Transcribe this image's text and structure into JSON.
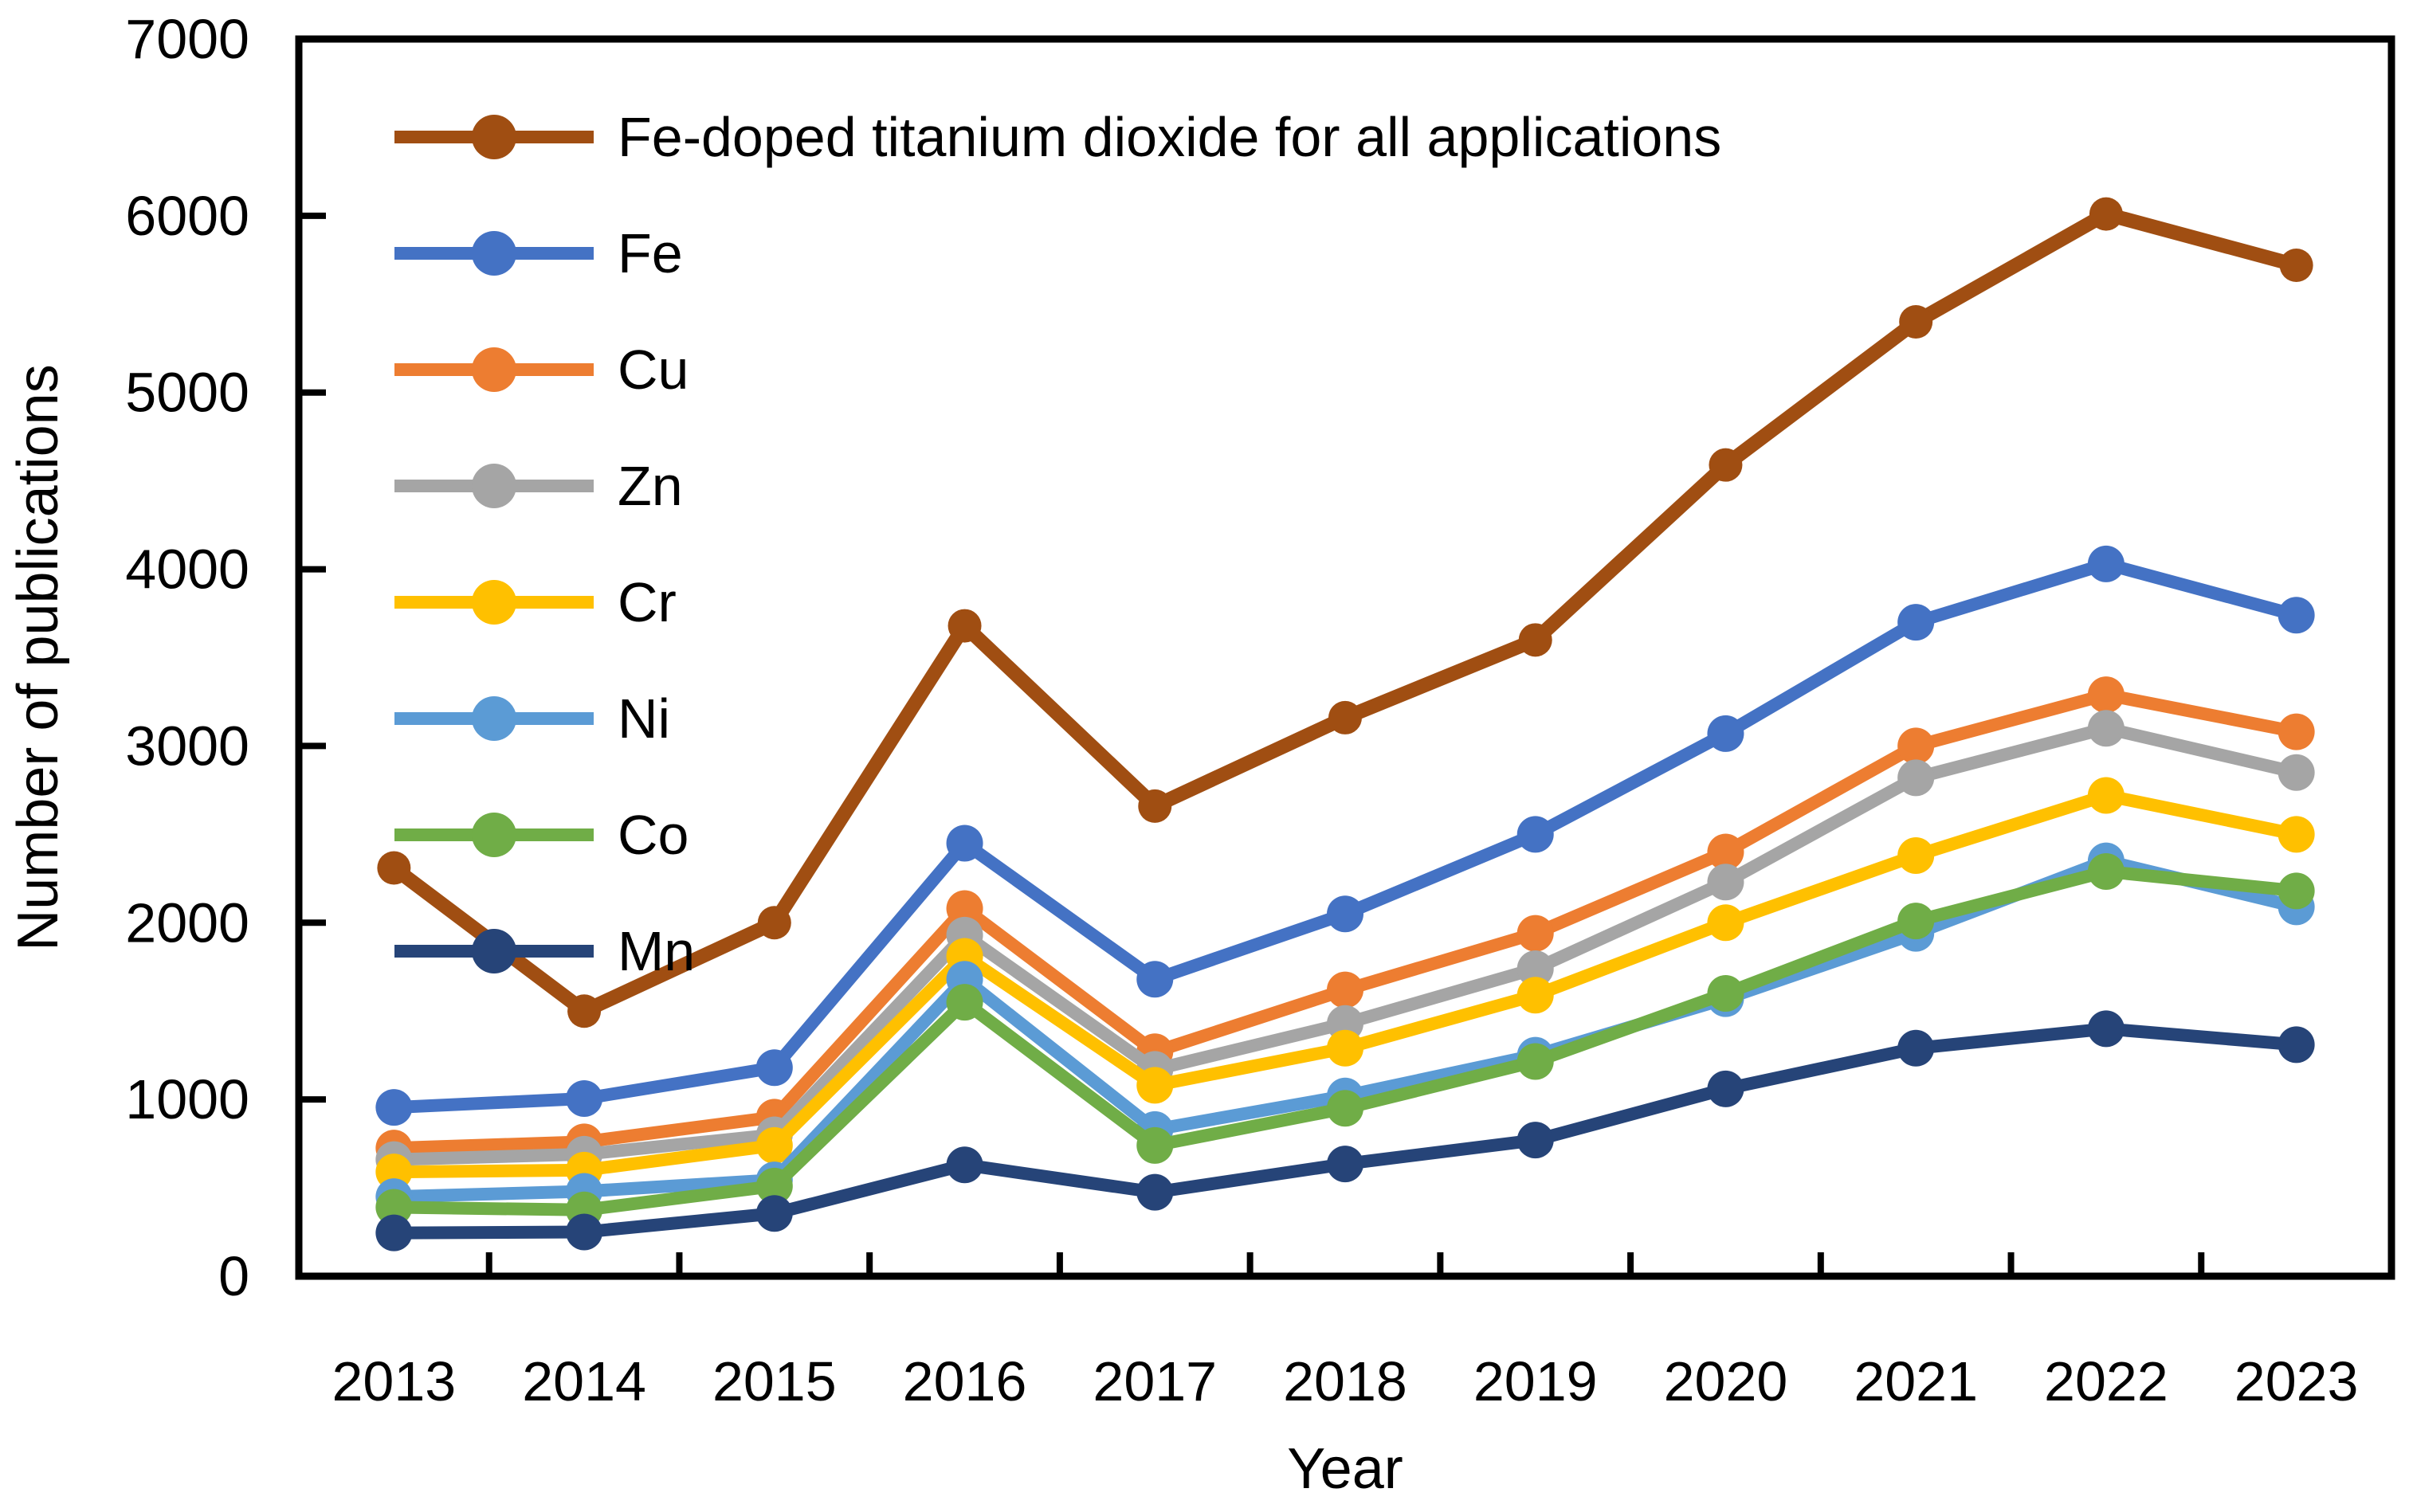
{
  "chart_data": {
    "type": "line",
    "title": "",
    "xlabel": "Year",
    "ylabel": "Number of publications",
    "categories": [
      2013,
      2014,
      2015,
      2016,
      2017,
      2018,
      2019,
      2020,
      2021,
      2022,
      2023
    ],
    "ylim": [
      0,
      7000
    ],
    "ytick_step": 1000,
    "y_ticks": [
      0,
      1000,
      2000,
      3000,
      4000,
      5000,
      6000,
      7000
    ],
    "grid": false,
    "legend_position": "inside-top-left",
    "tick_style": "inside",
    "frame": "full-box",
    "series": [
      {
        "name": "Fe-doped titanium dioxide for all applications",
        "color": "#A04E12",
        "values": [
          2310,
          1500,
          2000,
          3680,
          2660,
          3160,
          3600,
          4590,
          5400,
          6010,
          5720
        ]
      },
      {
        "name": "Fe",
        "color": "#4472C4",
        "values": [
          955,
          1005,
          1180,
          2450,
          1680,
          2050,
          2500,
          3070,
          3700,
          4030,
          3740
        ]
      },
      {
        "name": "Cu",
        "color": "#ED7D31",
        "values": [
          725,
          760,
          900,
          2080,
          1270,
          1620,
          1940,
          2400,
          3000,
          3290,
          3080
        ]
      },
      {
        "name": "Zn",
        "color": "#A5A5A5",
        "values": [
          660,
          690,
          800,
          1930,
          1170,
          1430,
          1740,
          2230,
          2820,
          3100,
          2850
        ]
      },
      {
        "name": "Cr",
        "color": "#FFC000",
        "values": [
          590,
          600,
          740,
          1810,
          1080,
          1290,
          1590,
          2000,
          2380,
          2720,
          2500
        ]
      },
      {
        "name": "Ni",
        "color": "#5B9BD5",
        "values": [
          450,
          480,
          545,
          1680,
          830,
          1020,
          1250,
          1570,
          1940,
          2350,
          2090
        ]
      },
      {
        "name": "Co",
        "color": "#70AD47",
        "values": [
          390,
          375,
          510,
          1550,
          740,
          950,
          1215,
          1600,
          2010,
          2290,
          2180
        ]
      },
      {
        "name": "Mn",
        "color": "#264478",
        "values": [
          245,
          250,
          355,
          630,
          475,
          635,
          770,
          1060,
          1290,
          1400,
          1310
        ]
      }
    ]
  },
  "styling": {
    "axis_color": "#000000",
    "background": "#ffffff"
  }
}
